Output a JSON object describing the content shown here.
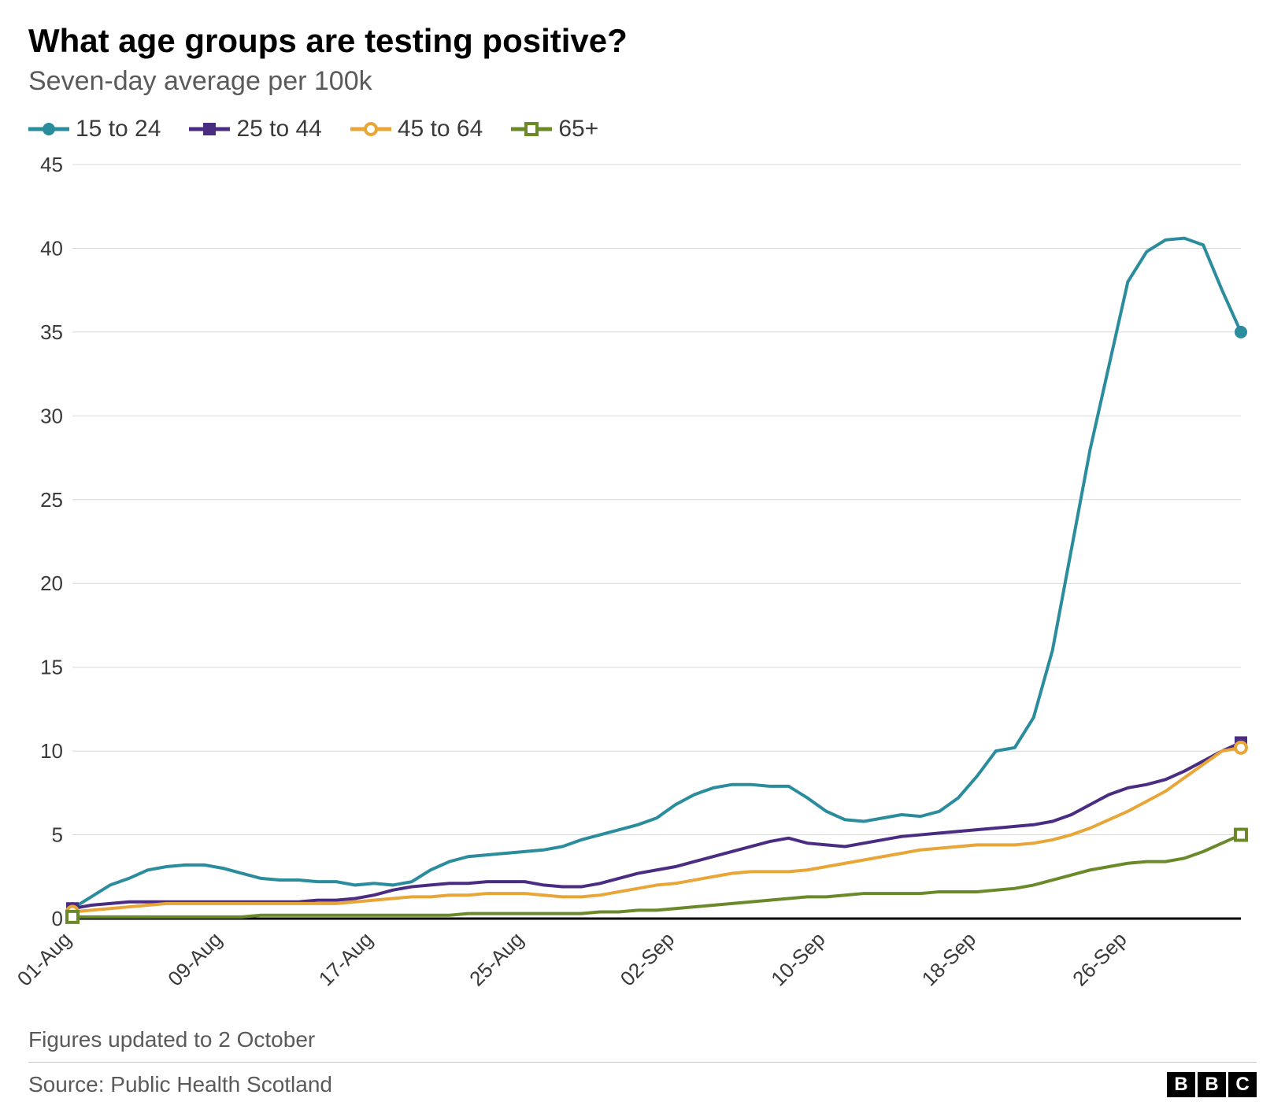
{
  "title": "What age groups are testing positive?",
  "subtitle": "Seven-day average per 100k",
  "footnote": "Figures updated to 2 October",
  "source": "Source: Public Health Scotland",
  "logo": [
    "B",
    "B",
    "C"
  ],
  "chart": {
    "type": "line",
    "background_color": "#ffffff",
    "grid_color": "#d8d8d8",
    "zero_line_color": "#000000",
    "ylim": [
      0,
      45
    ],
    "ytick_step": 5,
    "yticks": [
      0,
      5,
      10,
      15,
      20,
      25,
      30,
      35,
      40,
      45
    ],
    "line_width": 4,
    "ytick_fontsize": 26,
    "xtick_fontsize": 26,
    "title_fontsize": 42,
    "subtitle_fontsize": 34,
    "x_index_max": 62,
    "xticks": [
      {
        "i": 0,
        "label": "01-Aug"
      },
      {
        "i": 8,
        "label": "09-Aug"
      },
      {
        "i": 16,
        "label": "17-Aug"
      },
      {
        "i": 24,
        "label": "25-Aug"
      },
      {
        "i": 32,
        "label": "02-Sep"
      },
      {
        "i": 40,
        "label": "10-Sep"
      },
      {
        "i": 48,
        "label": "18-Sep"
      },
      {
        "i": 56,
        "label": "26-Sep"
      }
    ],
    "series": [
      {
        "id": "s15to24",
        "label": "15 to 24",
        "color": "#2a8c9c",
        "marker": "circle-filled",
        "marker_size": 10,
        "values": [
          0.6,
          1.3,
          2.0,
          2.4,
          2.9,
          3.1,
          3.2,
          3.2,
          3.0,
          2.7,
          2.4,
          2.3,
          2.3,
          2.2,
          2.2,
          2.0,
          2.1,
          2.0,
          2.2,
          2.9,
          3.4,
          3.7,
          3.8,
          3.9,
          4.0,
          4.1,
          4.3,
          4.7,
          5.0,
          5.3,
          5.6,
          6.0,
          6.8,
          7.4,
          7.8,
          8.0,
          8.0,
          7.9,
          7.9,
          7.2,
          6.4,
          5.9,
          5.8,
          6.0,
          6.2,
          6.1,
          6.4,
          7.2,
          8.5,
          10.0,
          10.2,
          12.0,
          16.0,
          22.0,
          28.0,
          33.0,
          38.0,
          39.8,
          40.5,
          40.6,
          40.2,
          37.5,
          35.0
        ]
      },
      {
        "id": "s25to44",
        "label": "25 to 44",
        "color": "#4a2c82",
        "marker": "square-filled",
        "marker_size": 10,
        "values": [
          0.6,
          0.8,
          0.9,
          1.0,
          1.0,
          1.0,
          1.0,
          1.0,
          1.0,
          1.0,
          1.0,
          1.0,
          1.0,
          1.1,
          1.1,
          1.2,
          1.4,
          1.7,
          1.9,
          2.0,
          2.1,
          2.1,
          2.2,
          2.2,
          2.2,
          2.0,
          1.9,
          1.9,
          2.1,
          2.4,
          2.7,
          2.9,
          3.1,
          3.4,
          3.7,
          4.0,
          4.3,
          4.6,
          4.8,
          4.5,
          4.4,
          4.3,
          4.5,
          4.7,
          4.9,
          5.0,
          5.1,
          5.2,
          5.3,
          5.4,
          5.5,
          5.6,
          5.8,
          6.2,
          6.8,
          7.4,
          7.8,
          8.0,
          8.3,
          8.8,
          9.4,
          10.0,
          10.5
        ]
      },
      {
        "id": "s45to64",
        "label": "45 to 64",
        "color": "#e8a538",
        "marker": "circle-open",
        "marker_size": 10,
        "values": [
          0.4,
          0.5,
          0.6,
          0.7,
          0.8,
          0.9,
          0.9,
          0.9,
          0.9,
          0.9,
          0.9,
          0.9,
          0.9,
          0.9,
          0.9,
          1.0,
          1.1,
          1.2,
          1.3,
          1.3,
          1.4,
          1.4,
          1.5,
          1.5,
          1.5,
          1.4,
          1.3,
          1.3,
          1.4,
          1.6,
          1.8,
          2.0,
          2.1,
          2.3,
          2.5,
          2.7,
          2.8,
          2.8,
          2.8,
          2.9,
          3.1,
          3.3,
          3.5,
          3.7,
          3.9,
          4.1,
          4.2,
          4.3,
          4.4,
          4.4,
          4.4,
          4.5,
          4.7,
          5.0,
          5.4,
          5.9,
          6.4,
          7.0,
          7.6,
          8.4,
          9.2,
          10.0,
          10.2
        ]
      },
      {
        "id": "s65plus",
        "label": "65+",
        "color": "#6a8a2a",
        "marker": "square-open",
        "marker_size": 10,
        "values": [
          0.1,
          0.1,
          0.1,
          0.1,
          0.1,
          0.1,
          0.1,
          0.1,
          0.1,
          0.1,
          0.2,
          0.2,
          0.2,
          0.2,
          0.2,
          0.2,
          0.2,
          0.2,
          0.2,
          0.2,
          0.2,
          0.3,
          0.3,
          0.3,
          0.3,
          0.3,
          0.3,
          0.3,
          0.4,
          0.4,
          0.5,
          0.5,
          0.6,
          0.7,
          0.8,
          0.9,
          1.0,
          1.1,
          1.2,
          1.3,
          1.3,
          1.4,
          1.5,
          1.5,
          1.5,
          1.5,
          1.6,
          1.6,
          1.6,
          1.7,
          1.8,
          2.0,
          2.3,
          2.6,
          2.9,
          3.1,
          3.3,
          3.4,
          3.4,
          3.6,
          4.0,
          4.5,
          5.0
        ]
      }
    ]
  }
}
